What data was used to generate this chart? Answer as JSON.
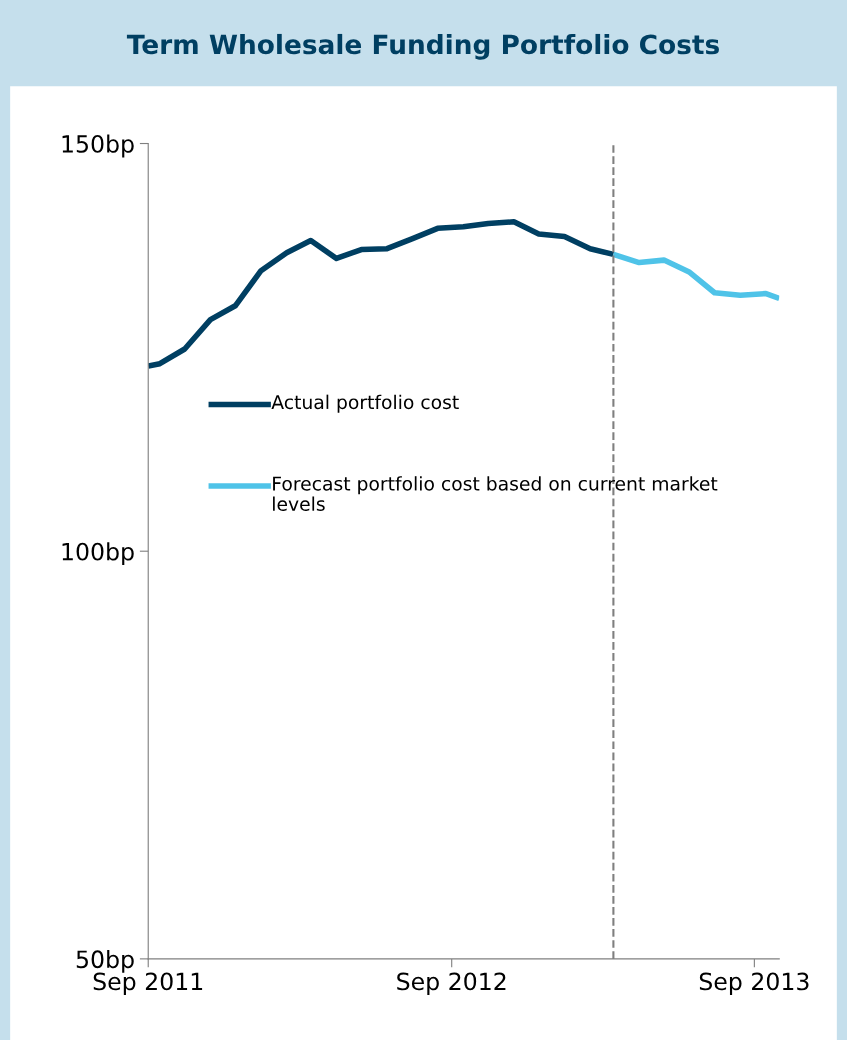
{
  "chart_data": {
    "type": "line",
    "title": "Term Wholesale Funding Portfolio Costs",
    "series": [
      {
        "name": "Actual portfolio cost",
        "color": "#003f62",
        "x": [
          "2011-09-01",
          "2011-09-15",
          "2011-10-15",
          "2011-11-15",
          "2011-12-15",
          "2012-01-15",
          "2012-02-15",
          "2012-03-15",
          "2012-04-15",
          "2012-05-15",
          "2012-06-15",
          "2012-07-15",
          "2012-08-15",
          "2012-09-15",
          "2012-10-15",
          "2012-11-15",
          "2012-12-15",
          "2013-01-15",
          "2013-02-15",
          "2013-03-15"
        ],
        "values": [
          122.7,
          123.0,
          124.8,
          128.4,
          130.1,
          134.4,
          136.6,
          138.1,
          135.9,
          137.0,
          137.1,
          138.3,
          139.6,
          139.8,
          140.2,
          140.4,
          138.9,
          138.6,
          137.1,
          136.4
        ]
      },
      {
        "name": "Forecast portfolio cost based on current market levels",
        "color": "#4fc3e8",
        "x": [
          "2013-03-15",
          "2013-04-15",
          "2013-05-15",
          "2013-06-15",
          "2013-07-15",
          "2013-08-15",
          "2013-09-15",
          "2013-10-01"
        ],
        "values": [
          136.4,
          135.4,
          135.7,
          134.2,
          131.7,
          131.4,
          131.6,
          131.0
        ]
      }
    ],
    "xlim": [
      "2011-09-01",
      "2013-10-01"
    ],
    "xticks": [
      {
        "value": "2011-09-01",
        "label": "Sep 2011"
      },
      {
        "value": "2012-09-01",
        "label": "Sep 2012"
      },
      {
        "value": "2013-09-01",
        "label": "Sep 2013"
      }
    ],
    "ylim": [
      50,
      150
    ],
    "yticks": [
      {
        "value": 50,
        "label": "50bp"
      },
      {
        "value": 100,
        "label": "100bp"
      },
      {
        "value": 150,
        "label": "150bp"
      }
    ],
    "ref_lines": [
      {
        "axis": "x",
        "value": "2013-03-15",
        "label": null,
        "color": "#7f7f7f",
        "line_style": "dashed"
      }
    ],
    "grid": false,
    "legend": "center left",
    "marker": "none",
    "line_style": "solid"
  }
}
